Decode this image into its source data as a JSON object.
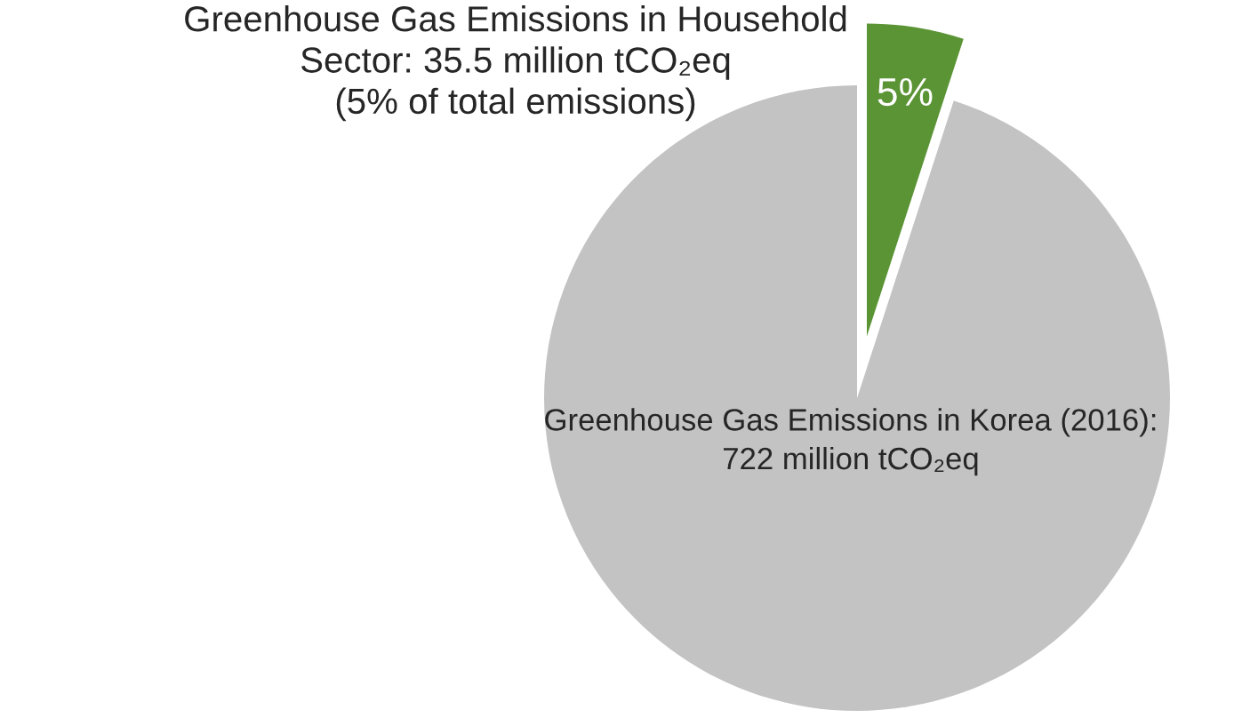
{
  "chart_data": {
    "type": "pie",
    "categories": [
      "Greenhouse Gas Emissions in Korea (2016):\n722 million tCO₂eq",
      "Greenhouse Gas Emissions in Household\nSector: 35.5 million tCO₂eq\n(5% of total emissions)"
    ],
    "values": [
      95,
      5
    ],
    "colors": [
      "#c3c3c3",
      "#5b9435"
    ],
    "value_labels": [
      null,
      "5%"
    ]
  }
}
